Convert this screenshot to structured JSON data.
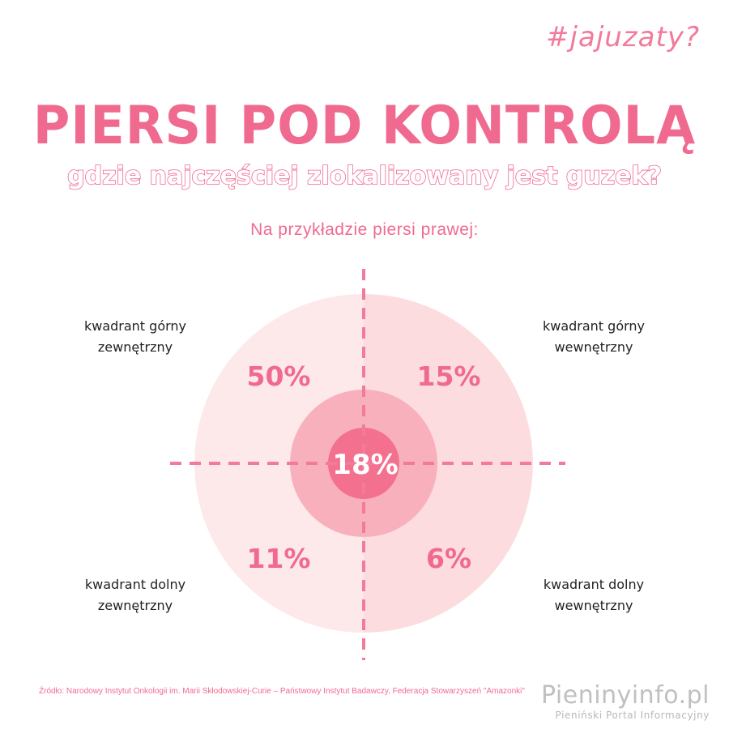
{
  "hashtag": "#jajuzaty?",
  "title": "PIERSI POD KONTROLĄ",
  "subtitle": "gdzie najczęściej zlokalizowany jest guzek?",
  "note": "Na przykładzie piersi prawej:",
  "quadrants": {
    "upper_outer": {
      "line1": "kwadrant górny",
      "line2": "zewnętrzny",
      "percent": "50%"
    },
    "upper_inner": {
      "line1": "kwadrant górny",
      "line2": "wewnętrzny",
      "percent": "15%"
    },
    "lower_outer": {
      "line1": "kwadrant dolny",
      "line2": "zewnętrzny",
      "percent": "11%"
    },
    "lower_inner": {
      "line1": "kwadrant dolny",
      "line2": "wewnętrzny",
      "percent": "6%"
    },
    "center": {
      "percent": "18%"
    }
  },
  "colors": {
    "accent": "#f06a90",
    "outer_left": "#fde8ea",
    "outer_right": "#fcdcdf",
    "middle_ring": "#f9b0bd",
    "center": "#f3708f",
    "axis": "#f27a9a"
  },
  "source": "Źródło: Narodowy Instytut Onkologii im. Marii Skłodowskiej-Curie – Państwowy Instytut Badawczy, Federacja Stowarzyszeń \"Amazonki\"",
  "brand": {
    "name": "Pieninyinfo.pl",
    "tagline": "Pieniński Portal Informacyjny"
  }
}
